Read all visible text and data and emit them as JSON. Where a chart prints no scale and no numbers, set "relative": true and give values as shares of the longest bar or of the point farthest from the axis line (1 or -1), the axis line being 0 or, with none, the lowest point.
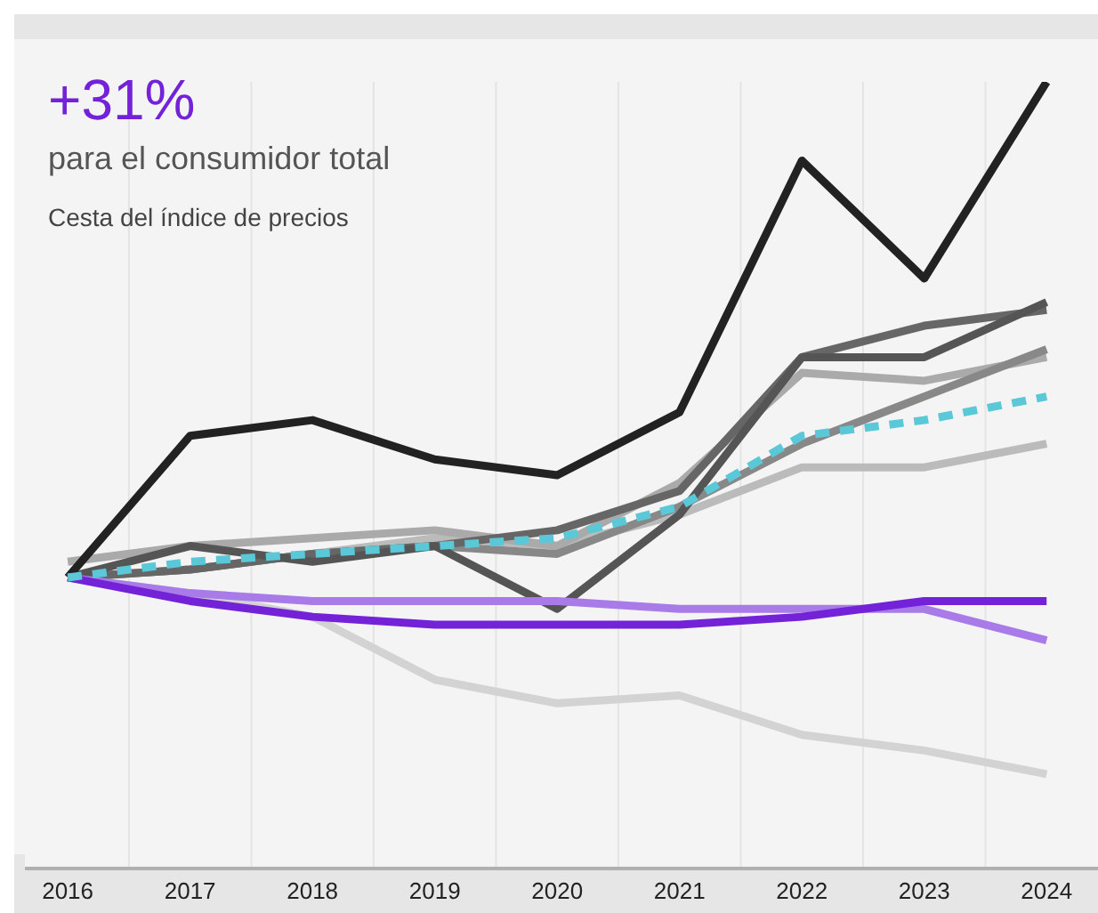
{
  "chart_data": {
    "type": "line",
    "title": "+31%",
    "subtitle": "para el consumidor total",
    "annotations": [
      "Cesta del índice de precios"
    ],
    "relative": true,
    "categories": [
      "2016",
      "2017",
      "2018",
      "2019",
      "2020",
      "2021",
      "2022",
      "2023",
      "2024"
    ],
    "grid": "x",
    "legend": false,
    "marker": "none",
    "series": [
      {
        "color": "#d3d3d3",
        "values": [
          0.37,
          0.35,
          0.32,
          0.24,
          0.21,
          0.22,
          0.17,
          0.15,
          0.12
        ]
      },
      {
        "color": "#bbbbbb",
        "values": [
          0.37,
          0.38,
          0.4,
          0.42,
          0.41,
          0.45,
          0.51,
          0.51,
          0.54
        ]
      },
      {
        "color": "#aaaaaa",
        "values": [
          0.39,
          0.41,
          0.42,
          0.43,
          0.41,
          0.49,
          0.63,
          0.62,
          0.65
        ]
      },
      {
        "color": "#888888",
        "values": [
          0.37,
          0.38,
          0.4,
          0.41,
          0.4,
          0.46,
          0.54,
          0.6,
          0.66
        ]
      },
      {
        "color": "#666666",
        "values": [
          0.37,
          0.38,
          0.4,
          0.41,
          0.43,
          0.48,
          0.65,
          0.69,
          0.71
        ]
      },
      {
        "color": "#555555",
        "values": [
          0.37,
          0.41,
          0.39,
          0.41,
          0.33,
          0.45,
          0.65,
          0.65,
          0.72
        ]
      },
      {
        "color": "#222222",
        "values": [
          0.37,
          0.55,
          0.57,
          0.52,
          0.5,
          0.58,
          0.9,
          0.75,
          1.0
        ]
      },
      {
        "color": "#a97be8",
        "values": [
          0.37,
          0.35,
          0.34,
          0.34,
          0.34,
          0.33,
          0.33,
          0.33,
          0.29
        ]
      },
      {
        "color": "#7322d8",
        "values": [
          0.37,
          0.34,
          0.32,
          0.31,
          0.31,
          0.31,
          0.32,
          0.34,
          0.34
        ]
      },
      {
        "color": "#5bc8d8",
        "line_style": "dashed",
        "values": [
          0.37,
          0.39,
          0.4,
          0.41,
          0.42,
          0.46,
          0.55,
          0.57,
          0.6
        ]
      }
    ]
  }
}
